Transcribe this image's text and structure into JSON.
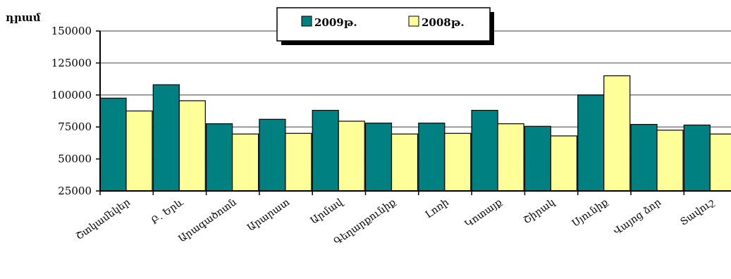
{
  "chart_data": {
    "type": "bar",
    "ylabel": "դրամ",
    "ylim": [
      25000,
      150000
    ],
    "yticks": [
      25000,
      50000,
      75000,
      100000,
      125000,
      150000
    ],
    "grid": true,
    "legend_position": "top-center",
    "categories": [
      "Շտկամեկեր",
      "Բ. Երև",
      "Արագածոտն",
      "Արարատ",
      "Արմավ",
      "Գեղարքունիք",
      "Լոռի",
      "Կոտայք",
      "Շիրակ",
      "Սյունիք",
      "Վայոց ձոր",
      "Տավուշ"
    ],
    "series": [
      {
        "name": "2009թ.",
        "color": "#008080",
        "values": [
          97500,
          108000,
          77500,
          81000,
          88000,
          78000,
          78000,
          88000,
          75500,
          100000,
          77000,
          76500
        ]
      },
      {
        "name": "2008թ.",
        "color": "#FFFF99",
        "values": [
          87500,
          95500,
          69500,
          70000,
          79500,
          69500,
          70000,
          77500,
          68000,
          115000,
          72500,
          69500
        ]
      }
    ]
  }
}
